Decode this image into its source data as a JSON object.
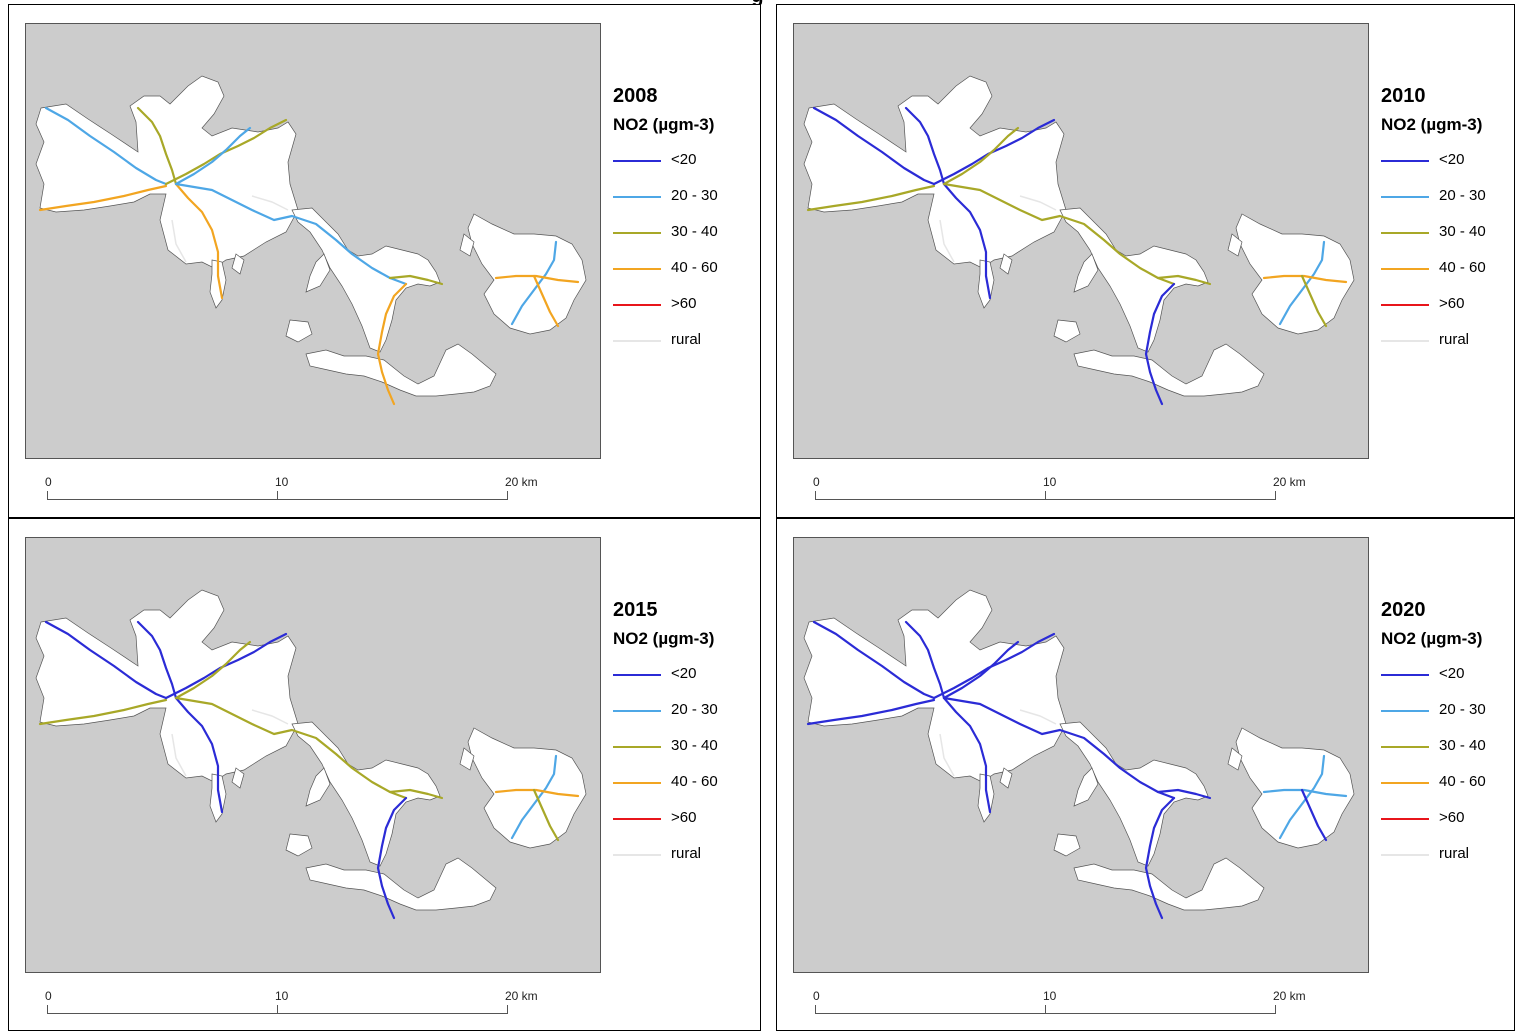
{
  "figure": {
    "title": "g"
  },
  "scalebar": {
    "labels": [
      "0",
      "10",
      "20 km"
    ]
  },
  "legend": {
    "title": "NO2 (µgm-3)",
    "classes": [
      {
        "label": "<20",
        "color": "#2b2bd6"
      },
      {
        "label": "20 - 30",
        "color": "#4ea7e6"
      },
      {
        "label": "30 - 40",
        "color": "#a8a828"
      },
      {
        "label": "40 - 60",
        "color": "#f2a521"
      },
      {
        "label": ">60",
        "color": "#e8151b"
      },
      {
        "label": "rural",
        "color": "#e6e6e6"
      }
    ]
  },
  "panels": [
    {
      "year": "2008",
      "road_classes": [
        "20 - 30",
        "30 - 40",
        "40 - 60"
      ]
    },
    {
      "year": "2010",
      "road_classes": [
        "<20",
        "20 - 30",
        "30 - 40",
        "40 - 60"
      ]
    },
    {
      "year": "2015",
      "road_classes": [
        "<20",
        "20 - 30",
        "30 - 40",
        "40 - 60"
      ]
    },
    {
      "year": "2020",
      "road_classes": [
        "<20",
        "20 - 30"
      ]
    }
  ]
}
